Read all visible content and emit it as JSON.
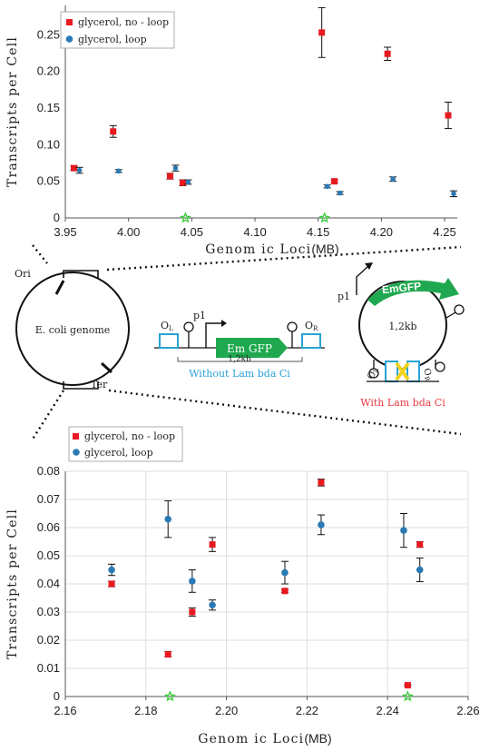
{
  "chart_data": [
    {
      "type": "scatter",
      "title": "",
      "xlabel_main": "Genom ic Loci",
      "xlabel_unit": "(MB)",
      "ylabel": "Transcripts per Cell",
      "xlim": [
        3.95,
        4.26
      ],
      "ylim": [
        0,
        0.29
      ],
      "xticks": [
        "3.95",
        "4.00",
        "4.05",
        "4.10",
        "4.15",
        "4.20",
        "4.25"
      ],
      "yticks": [
        "0",
        "0.05",
        "0.10",
        "0.15",
        "0.20",
        "0.25"
      ],
      "grid": false,
      "legend": "top-left",
      "series": [
        {
          "name": "glycerol, no - loop",
          "color": "#e8191f",
          "marker": "square",
          "points": [
            {
              "x": 3.959,
              "y": 0.068,
              "err": 0.003
            },
            {
              "x": 3.99,
              "y": 0.118,
              "err": 0.008
            },
            {
              "x": 4.035,
              "y": 0.057,
              "err": 0.004
            },
            {
              "x": 4.045,
              "y": 0.048,
              "err": 0.004
            },
            {
              "x": 4.155,
              "y": 0.253,
              "err": 0.034
            },
            {
              "x": 4.165,
              "y": 0.05,
              "err": 0.002
            },
            {
              "x": 4.207,
              "y": 0.224,
              "err": 0.009
            },
            {
              "x": 4.255,
              "y": 0.14,
              "err": 0.018
            }
          ]
        },
        {
          "name": "glycerol, loop",
          "color": "#2a7ab6",
          "marker": "circle",
          "points": [
            {
              "x": 3.959,
              "y": 0.065,
              "err": 0.004
            },
            {
              "x": 3.99,
              "y": 0.064,
              "err": 0.002
            },
            {
              "x": 4.035,
              "y": 0.068,
              "err": 0.004
            },
            {
              "x": 4.045,
              "y": 0.049,
              "err": 0.003
            },
            {
              "x": 4.155,
              "y": 0.043,
              "err": 0.002
            },
            {
              "x": 4.165,
              "y": 0.034,
              "err": 0.002
            },
            {
              "x": 4.207,
              "y": 0.053,
              "err": 0.003
            },
            {
              "x": 4.255,
              "y": 0.033,
              "err": 0.004
            }
          ]
        }
      ],
      "markers": [
        {
          "x": 4.045,
          "y": 0,
          "shape": "star",
          "color": "#33cc33"
        },
        {
          "x": 4.155,
          "y": 0,
          "shape": "star",
          "color": "#33cc33"
        }
      ]
    },
    {
      "type": "scatter",
      "title": "",
      "xlabel_main": "Genom ic Loci",
      "xlabel_unit": "(MB)",
      "ylabel": "Transcripts per Cell",
      "xlim": [
        2.16,
        2.26
      ],
      "ylim": [
        0,
        0.08
      ],
      "xticks": [
        "2.16",
        "2.18",
        "2.20",
        "2.22",
        "2.24",
        "2.26"
      ],
      "yticks": [
        "0",
        "0.01",
        "0.02",
        "0.03",
        "0.04",
        "0.05",
        "0.06",
        "0.07",
        "0.08"
      ],
      "grid": true,
      "legend": "top-left",
      "series": [
        {
          "name": "glycerol, no - loop",
          "color": "#e8191f",
          "marker": "square",
          "points": [
            {
              "x": 2.1715,
              "y": 0.04,
              "err": 0.001
            },
            {
              "x": 2.1855,
              "y": 0.015,
              "err": 0.001
            },
            {
              "x": 2.1915,
              "y": 0.03,
              "err": 0.0015
            },
            {
              "x": 2.1965,
              "y": 0.054,
              "err": 0.0025
            },
            {
              "x": 2.2145,
              "y": 0.0375,
              "err": 0.0005
            },
            {
              "x": 2.2235,
              "y": 0.076,
              "err": 0.0012
            },
            {
              "x": 2.245,
              "y": 0.004,
              "err": 0.0003
            },
            {
              "x": 2.248,
              "y": 0.054,
              "err": 0.001
            }
          ]
        },
        {
          "name": "glycerol, loop",
          "color": "#2a7ab6",
          "marker": "circle",
          "points": [
            {
              "x": 2.1715,
              "y": 0.045,
              "err": 0.002
            },
            {
              "x": 2.1855,
              "y": 0.063,
              "err": 0.0065
            },
            {
              "x": 2.1915,
              "y": 0.041,
              "err": 0.004
            },
            {
              "x": 2.1965,
              "y": 0.0325,
              "err": 0.0018
            },
            {
              "x": 2.2145,
              "y": 0.044,
              "err": 0.004
            },
            {
              "x": 2.2235,
              "y": 0.061,
              "err": 0.0035
            },
            {
              "x": 2.244,
              "y": 0.059,
              "err": 0.006
            },
            {
              "x": 2.248,
              "y": 0.045,
              "err": 0.0042
            }
          ]
        }
      ],
      "markers": [
        {
          "x": 2.186,
          "y": 0,
          "shape": "star",
          "color": "#33cc33"
        },
        {
          "x": 2.245,
          "y": 0,
          "shape": "star",
          "color": "#33cc33"
        }
      ]
    }
  ],
  "diagram": {
    "genome": {
      "label": "E. coli genome",
      "ori": "Ori",
      "ter": "Ter"
    },
    "construct": {
      "ol": "O",
      "ol_sub": "L",
      "or": "O",
      "or_sub": "R",
      "promoter": "p1",
      "gene": "Em GFP",
      "length": "1,2kb",
      "caption": "Without Lam bda Ci",
      "caption_color": "#29a3d6"
    },
    "loop": {
      "promoter": "p1",
      "gene": "EmGFP",
      "length": "1,2kb",
      "ol": "O",
      "ol_sub": "L",
      "or": "O",
      "or_sub": "R",
      "caption": "With Lam bda Ci",
      "caption_color": "#e8383d"
    },
    "colors": {
      "gfp": "#1fa84f",
      "operator": "#29a3d6",
      "repressor": "#f2d21b"
    }
  }
}
